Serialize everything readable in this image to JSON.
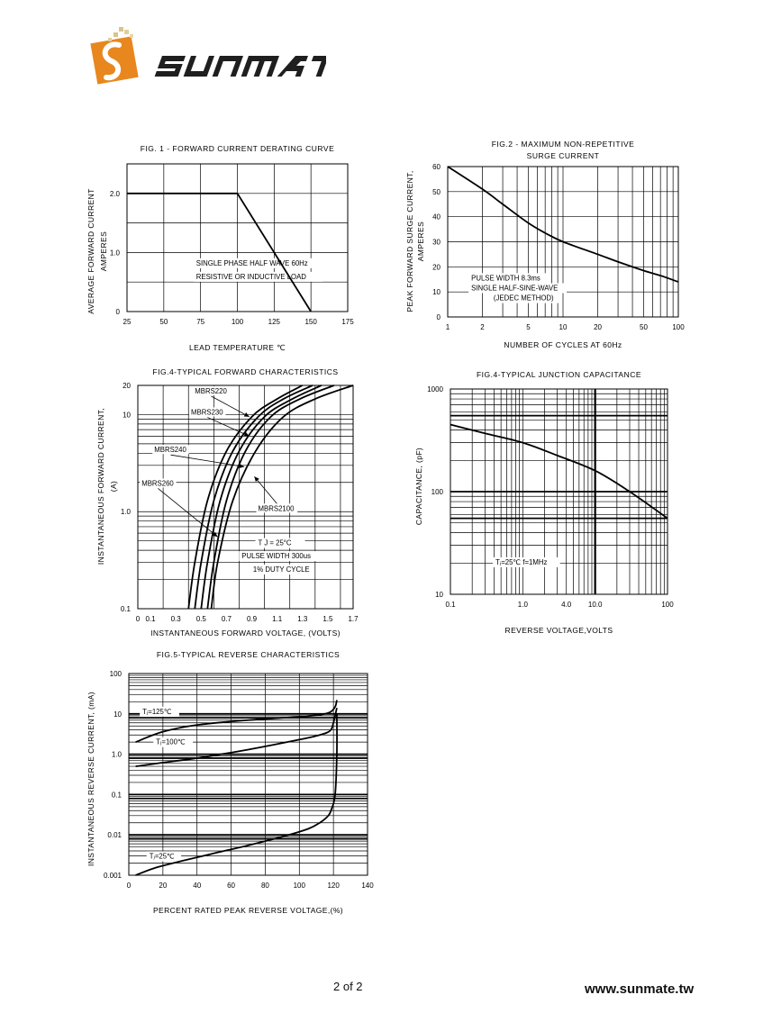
{
  "brand": {
    "name": "SUNMATE",
    "colors": {
      "orange": "#e8871e",
      "dark": "#222222"
    }
  },
  "footer": {
    "page": "2 of 2",
    "url": "www.sunmate.tw"
  },
  "chart_data": [
    {
      "id": "fig1",
      "type": "line",
      "title": "FIG. 1 - FORWARD  CURRENT  DERATING  CURVE",
      "xlabel": "LEAD TEMPERATURE  ℃",
      "ylabel": [
        "AVERAGE FORWARD CURRENT",
        "AMPERES"
      ],
      "xlim": [
        25,
        175
      ],
      "ylim": [
        0,
        2.5
      ],
      "xticks": [
        25,
        50,
        75,
        100,
        125,
        150,
        175
      ],
      "yticks": [
        {
          "v": 0,
          "label": "0"
        },
        {
          "v": 1.0,
          "label": "1.0"
        },
        {
          "v": 2.0,
          "label": "2.0"
        }
      ],
      "vgrid": [
        50,
        75,
        100,
        125,
        150
      ],
      "hgrid": [
        0.5,
        1.0,
        1.5,
        2.0
      ],
      "series": [
        {
          "name": "derating",
          "x": [
            25,
            100,
            150
          ],
          "y": [
            2.0,
            2.0,
            0
          ]
        }
      ],
      "annotations": [
        {
          "text": "SINGLE PHASE HALF WAVE 60Hz",
          "x": 72,
          "y": 0.78
        },
        {
          "text": "RESISTIVE OR  INDUCTIVE LOAD",
          "x": 72,
          "y": 0.55
        }
      ]
    },
    {
      "id": "fig2",
      "type": "line",
      "xscale": "log",
      "title": [
        "FIG.2 - MAXIMUM  NON-REPETITIVE",
        "SURGE  CURRENT"
      ],
      "xlabel": "NUMBER OF CYCLES AT 60Hz",
      "ylabel": [
        "PEAK FORWARD SURGE CURRENT,",
        "AMPERES"
      ],
      "xlim": [
        1,
        100
      ],
      "ylim": [
        0,
        60
      ],
      "xticks": [
        {
          "v": 1,
          "label": "1"
        },
        {
          "v": 2,
          "label": "2"
        },
        {
          "v": 5,
          "label": "5"
        },
        {
          "v": 10,
          "label": "10"
        },
        {
          "v": 20,
          "label": "20"
        },
        {
          "v": 50,
          "label": "50"
        },
        {
          "v": 100,
          "label": "100"
        }
      ],
      "yticks": [
        0,
        10,
        20,
        30,
        40,
        50,
        60
      ],
      "vgrid": [
        2,
        3,
        4,
        5,
        6,
        7,
        8,
        9,
        10,
        20,
        30,
        40,
        50,
        60,
        70,
        80,
        90
      ],
      "hgrid": [
        10,
        20,
        30,
        40,
        50
      ],
      "series": [
        {
          "name": "surge",
          "x": [
            1,
            2,
            3,
            5,
            7,
            10,
            20,
            30,
            50,
            70,
            100
          ],
          "y": [
            60,
            51,
            45,
            37.5,
            33.5,
            30,
            25,
            22,
            18.5,
            16.5,
            14
          ]
        }
      ],
      "annotations": [
        {
          "text": "PULSE WIDTH 8.3ms",
          "x": 1.6,
          "y": 14.6
        },
        {
          "text": "SINGLE HALF-SINE-WAVE",
          "x": 1.6,
          "y": 10.6
        },
        {
          "text": "(JEDEC METHOD)",
          "x": 2.5,
          "y": 6.6
        }
      ]
    },
    {
      "id": "fig3",
      "type": "line",
      "yscale": "log",
      "title": "FIG.4-TYPICAL FORWARD CHARACTERISTICS",
      "xlabel": "INSTANTANEOUS FORWARD VOLTAGE, (VOLTS)",
      "ylabel": [
        "INSTANTANEOUS FORWARD CURRENT,",
        "(A)"
      ],
      "xlim": [
        0,
        1.7
      ],
      "ylim": [
        0.1,
        20
      ],
      "xticks": [
        {
          "v": 0,
          "label": "0"
        },
        {
          "v": 0.1,
          "label": "0.1"
        },
        {
          "v": 0.3,
          "label": "0.3"
        },
        {
          "v": 0.5,
          "label": "0.5"
        },
        {
          "v": 0.7,
          "label": "0.7"
        },
        {
          "v": 0.9,
          "label": "0.9"
        },
        {
          "v": 1.1,
          "label": "1.1"
        },
        {
          "v": 1.3,
          "label": "1.3"
        },
        {
          "v": 1.5,
          "label": "1.5"
        },
        {
          "v": 1.7,
          "label": "1.7"
        }
      ],
      "yticks": [
        {
          "v": 0.1,
          "label": "0.1"
        },
        {
          "v": 1.0,
          "label": "1.0"
        },
        {
          "v": 10,
          "label": "10"
        },
        {
          "v": 20,
          "label": "20"
        }
      ],
      "vgrid": [
        0.2,
        0.4,
        0.6,
        0.8,
        1.0,
        1.2,
        1.4,
        1.6
      ],
      "hgrid": [
        0.2,
        0.3,
        0.4,
        0.5,
        0.6,
        0.7,
        0.8,
        0.9,
        1,
        2,
        3,
        4,
        5,
        6,
        7,
        8,
        9,
        10
      ],
      "series": [
        {
          "name": "MBRS220",
          "x": [
            0.4,
            0.45,
            0.55,
            0.7,
            0.9,
            1.1,
            1.3
          ],
          "y": [
            0.1,
            0.3,
            1.3,
            4.2,
            9.5,
            14.5,
            20
          ]
        },
        {
          "name": "MBRS230",
          "x": [
            0.45,
            0.5,
            0.6,
            0.75,
            0.95,
            1.15,
            1.38
          ],
          "y": [
            0.1,
            0.3,
            1.3,
            4.2,
            9.5,
            14.5,
            20
          ]
        },
        {
          "name": "MBRS240",
          "x": [
            0.5,
            0.55,
            0.65,
            0.8,
            1.0,
            1.22,
            1.45
          ],
          "y": [
            0.1,
            0.3,
            1.3,
            4.2,
            9.5,
            14.5,
            20
          ]
        },
        {
          "name": "MBRS260",
          "x": [
            0.55,
            0.6,
            0.7,
            0.85,
            1.05,
            1.28,
            1.55
          ],
          "y": [
            0.1,
            0.3,
            1.3,
            4.2,
            9.5,
            14.5,
            20
          ]
        },
        {
          "name": "MBRS2100",
          "x": [
            0.58,
            0.63,
            0.75,
            0.93,
            1.15,
            1.4,
            1.7
          ],
          "y": [
            0.1,
            0.3,
            1.3,
            4.2,
            9.5,
            14.5,
            20
          ]
        }
      ],
      "labels": [
        {
          "text": "MBRS220",
          "x": 0.45,
          "y": 16.5,
          "to": [
            0.88,
            9.5
          ]
        },
        {
          "text": "MBRS230",
          "x": 0.42,
          "y": 10,
          "to": [
            0.88,
            6
          ]
        },
        {
          "text": "MBRS240",
          "x": 0.13,
          "y": 4.1,
          "to": [
            0.84,
            2.9
          ]
        },
        {
          "text": "MBRS260",
          "x": 0.03,
          "y": 1.85,
          "to": [
            0.63,
            0.55
          ]
        },
        {
          "text": "MBRS2100",
          "x": 0.95,
          "y": 1.02,
          "to": [
            0.92,
            2.3
          ]
        }
      ],
      "annotations": [
        {
          "text": "T J = 25°C",
          "x": 0.95,
          "y": 0.45
        },
        {
          "text": "PULSE WIDTH 300us",
          "x": 0.82,
          "y": 0.33
        },
        {
          "text": "1% DUTY CYCLE",
          "x": 0.91,
          "y": 0.24
        }
      ]
    },
    {
      "id": "fig4",
      "type": "line",
      "xscale": "log",
      "yscale": "log",
      "title": "FIG.4-TYPICAL JUNCTION CAPACITANCE",
      "xlabel": "REVERSE VOLTAGE,VOLTS",
      "ylabel": [
        "CAPACITANCE,  (pF)"
      ],
      "xlim": [
        0.1,
        100
      ],
      "ylim": [
        10,
        1000
      ],
      "xticks": [
        {
          "v": 0.1,
          "label": "0.1"
        },
        {
          "v": 1.0,
          "label": "1.0"
        },
        {
          "v": 4.0,
          "label": "4.0"
        },
        {
          "v": 10.0,
          "label": "10.0"
        },
        {
          "v": 100,
          "label": "100"
        }
      ],
      "yticks": [
        {
          "v": 10,
          "label": "10"
        },
        {
          "v": 100,
          "label": "100"
        },
        {
          "v": 1000,
          "label": "1000"
        }
      ],
      "vgrid": [
        0.2,
        0.3,
        0.4,
        0.5,
        0.6,
        0.7,
        0.8,
        0.9,
        1,
        2,
        3,
        4,
        5,
        6,
        7,
        8,
        9,
        10,
        20,
        30,
        40,
        50,
        60,
        70,
        80,
        90
      ],
      "vgrid_bold": [
        10
      ],
      "hgrid": [
        20,
        30,
        40,
        50,
        60,
        70,
        80,
        90,
        100,
        200,
        300,
        400,
        500,
        600,
        700,
        800,
        900
      ],
      "hgrid_bold": [
        55,
        100,
        550
      ],
      "series": [
        {
          "name": "capacitance",
          "x": [
            0.1,
            0.3,
            1,
            3,
            10,
            30,
            100
          ],
          "y": [
            450,
            370,
            300,
            225,
            160,
            100,
            55
          ]
        }
      ],
      "annotations": [
        {
          "text": "Tⱼ=25℃  f=1MHz",
          "x": 0.42,
          "y": 19.5
        }
      ]
    },
    {
      "id": "fig5",
      "type": "line",
      "yscale": "log",
      "title": "FIG.5-TYPICAL REVERSE CHARACTERISTICS",
      "xlabel": "PERCENT RATED PEAK REVERSE VOLTAGE,(%)",
      "ylabel": [
        "INSTANTANEOUS REVERSE CURRENT, (mA)"
      ],
      "xlim": [
        0,
        140
      ],
      "ylim": [
        0.001,
        100
      ],
      "xticks": [
        0,
        20,
        40,
        60,
        80,
        100,
        120,
        140
      ],
      "yticks": [
        {
          "v": 0.001,
          "label": "0.001"
        },
        {
          "v": 0.01,
          "label": "0.01"
        },
        {
          "v": 0.1,
          "label": "0.1"
        },
        {
          "v": 1,
          "label": "1.0"
        },
        {
          "v": 10,
          "label": "10"
        },
        {
          "v": 100,
          "label": "100"
        }
      ],
      "vgrid": [
        20,
        40,
        60,
        80,
        100,
        120
      ],
      "hgrid": [
        0.002,
        0.003,
        0.004,
        0.005,
        0.006,
        0.007,
        0.008,
        0.009,
        0.01,
        0.02,
        0.03,
        0.04,
        0.05,
        0.06,
        0.07,
        0.08,
        0.09,
        0.1,
        0.2,
        0.3,
        0.4,
        0.5,
        0.6,
        0.7,
        0.8,
        0.9,
        1,
        2,
        3,
        4,
        5,
        6,
        7,
        8,
        9,
        10,
        20,
        30,
        40,
        50,
        60,
        70,
        80,
        90
      ],
      "hgrid_bold": [
        0.008,
        0.01,
        0.08,
        0.1,
        0.8,
        1,
        8,
        10
      ],
      "series": [
        {
          "name": "Tⱼ=125℃",
          "x": [
            4,
            20,
            40,
            70,
            100,
            112,
            118,
            121,
            122
          ],
          "y": [
            2.0,
            3.6,
            5.3,
            7.0,
            8.5,
            9.5,
            11,
            15,
            22
          ]
        },
        {
          "name": "Tⱼ=100℃",
          "x": [
            4,
            20,
            40,
            70,
            100,
            112,
            118,
            120,
            122
          ],
          "y": [
            0.5,
            0.62,
            0.8,
            1.3,
            2.3,
            3.0,
            3.8,
            6,
            14
          ]
        },
        {
          "name": "Tⱼ=25℃",
          "x": [
            4,
            15,
            30,
            50,
            70,
            90,
            105,
            112,
            117,
            119,
            121,
            122,
            122
          ],
          "y": [
            0.001,
            0.0015,
            0.0022,
            0.0035,
            0.0055,
            0.009,
            0.014,
            0.02,
            0.03,
            0.045,
            0.1,
            1,
            10
          ]
        }
      ],
      "labels": [
        {
          "text": "Tⱼ=125℃",
          "x": 8,
          "y": 10
        },
        {
          "text": "Tⱼ=100℃",
          "x": 16,
          "y": 1.75
        },
        {
          "text": "Tⱼ=25℃",
          "x": 12,
          "y": 0.0026
        }
      ]
    }
  ]
}
